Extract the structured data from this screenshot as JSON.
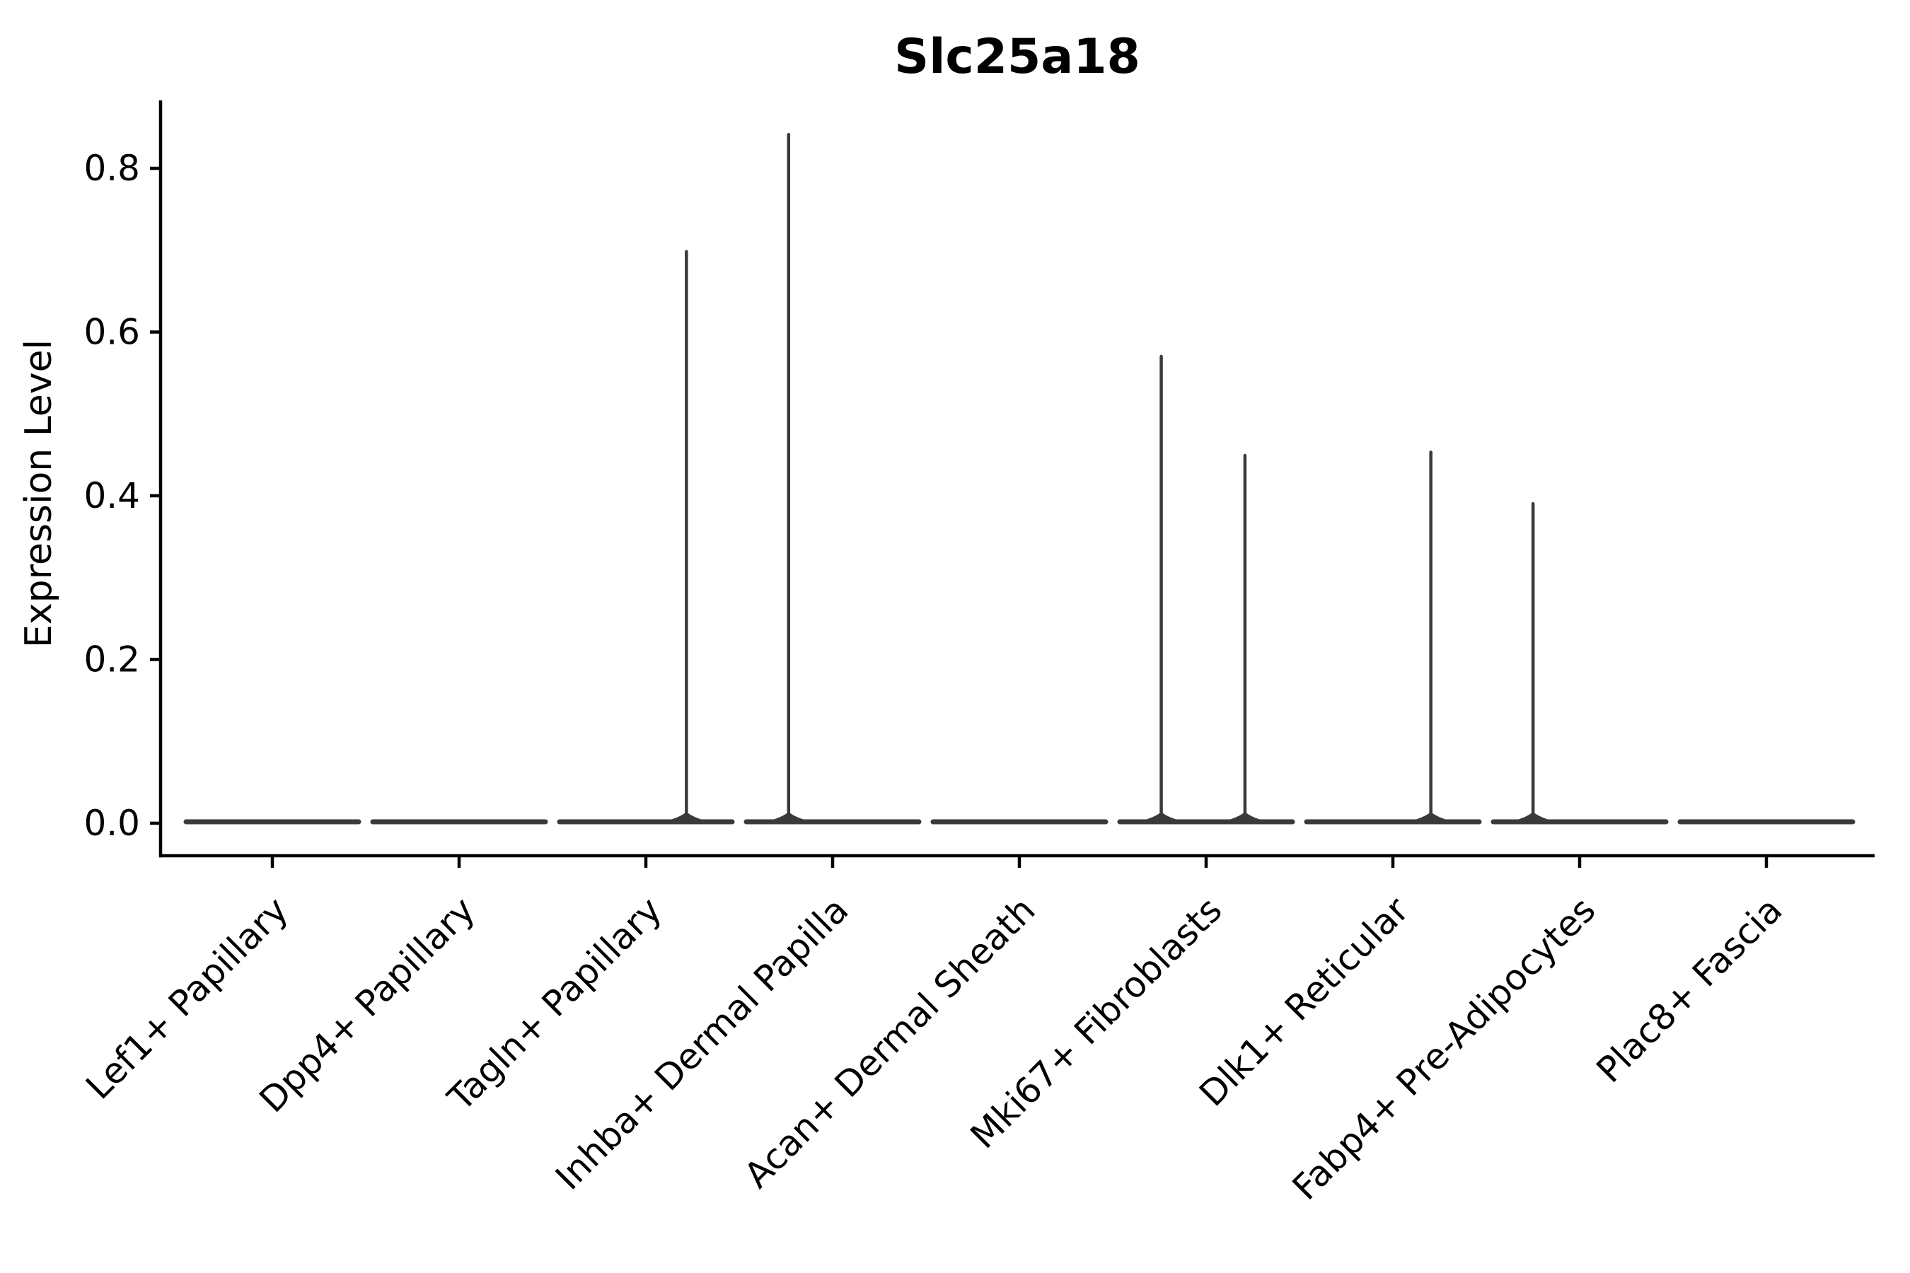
{
  "chart_data": {
    "type": "violin",
    "title": "Slc25a18",
    "ylabel": "Expression Level",
    "xlabel": "",
    "grid": false,
    "legend": "none",
    "x_tick_rotation_deg": 45,
    "ylim": [
      -0.04,
      0.88
    ],
    "yticks": [
      0.0,
      0.2,
      0.4,
      0.6,
      0.8
    ],
    "ytick_labels": [
      "0.0",
      "0.2",
      "0.4",
      "0.6",
      "0.8"
    ],
    "categories": [
      "Lef1+ Papillary",
      "Dpp4+ Papillary",
      "Tagln+ Papillary",
      "Inhba+ Dermal Papilla",
      "Acan+ Dermal Sheath",
      "Mki67+ Fibroblasts",
      "Dlk1+ Reticular",
      "Fabp4+ Pre-Adipocytes",
      "Plac8+ Fascia"
    ],
    "violins": [
      {
        "category": "Lef1+ Papillary",
        "baseline_value": 0.0,
        "max_value": 0.0,
        "spikes": []
      },
      {
        "category": "Dpp4+ Papillary",
        "baseline_value": 0.0,
        "max_value": 0.0,
        "spikes": []
      },
      {
        "category": "Tagln+ Papillary",
        "baseline_value": 0.0,
        "max_value": 0.7,
        "spikes": [
          {
            "offset_frac": 0.47,
            "value": 0.7
          }
        ]
      },
      {
        "category": "Inhba+ Dermal Papilla",
        "baseline_value": 0.0,
        "max_value": 0.843,
        "spikes": [
          {
            "offset_frac": -0.51,
            "value": 0.843
          }
        ]
      },
      {
        "category": "Acan+ Dermal Sheath",
        "baseline_value": 0.0,
        "max_value": 0.0,
        "spikes": []
      },
      {
        "category": "Mki67+ Fibroblasts",
        "baseline_value": 0.0,
        "max_value": 0.572,
        "spikes": [
          {
            "offset_frac": -0.52,
            "value": 0.572
          },
          {
            "offset_frac": 0.45,
            "value": 0.451
          }
        ]
      },
      {
        "category": "Dlk1+ Reticular",
        "baseline_value": 0.0,
        "max_value": 0.455,
        "spikes": [
          {
            "offset_frac": 0.44,
            "value": 0.455
          }
        ]
      },
      {
        "category": "Fabp4+ Pre-Adipocytes",
        "baseline_value": 0.0,
        "max_value": 0.392,
        "spikes": [
          {
            "offset_frac": -0.54,
            "value": 0.392
          }
        ]
      },
      {
        "category": "Plac8+ Fascia",
        "baseline_value": 0.0,
        "max_value": 0.0,
        "spikes": []
      }
    ],
    "colors": {
      "violin_stroke": "#3a3a3a",
      "axis": "#000000",
      "text": "#000000",
      "background": "#ffffff"
    }
  }
}
